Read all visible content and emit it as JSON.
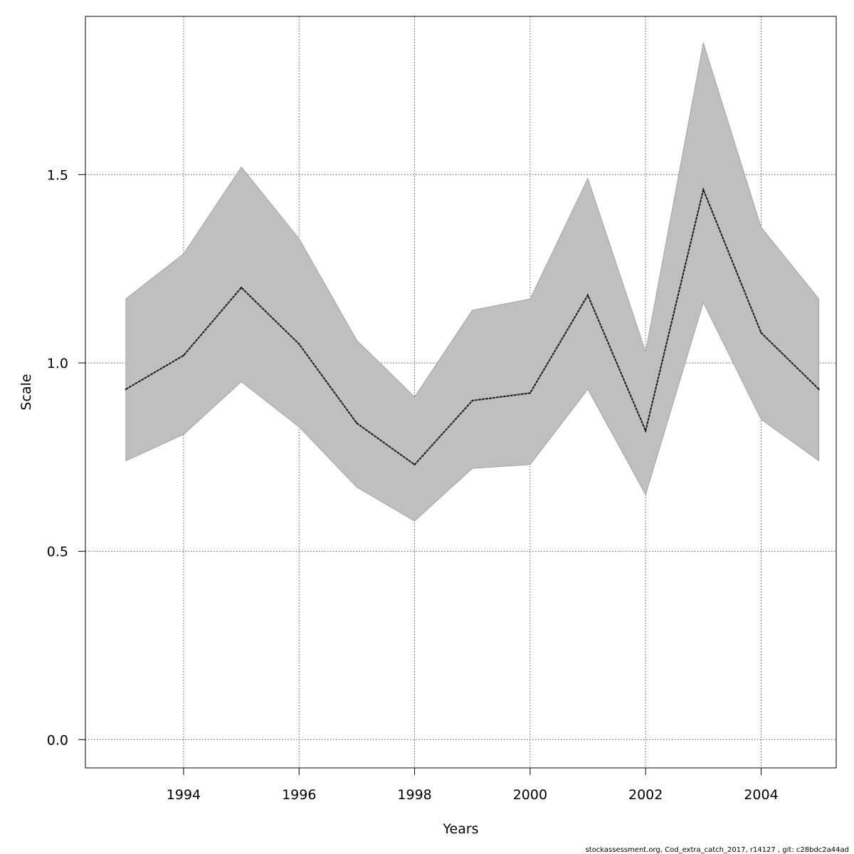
{
  "chart_data": {
    "type": "line",
    "title": "",
    "xlabel": "Years",
    "ylabel": "Scale",
    "xlim": [
      1992.3,
      2005.3
    ],
    "ylim": [
      -0.075,
      1.92
    ],
    "x_ticks": [
      1994,
      1996,
      1998,
      2000,
      2002,
      2004
    ],
    "y_ticks": [
      0.0,
      0.5,
      1.0,
      1.5
    ],
    "x_tick_labels": [
      "1994",
      "1996",
      "1998",
      "2000",
      "2002",
      "2004"
    ],
    "y_tick_labels": [
      "0.0",
      "0.5",
      "1.0",
      "1.5"
    ],
    "grid": true,
    "legend": "none",
    "x": [
      1993,
      1994,
      1995,
      1996,
      1997,
      1998,
      1999,
      2000,
      2001,
      2002,
      2003,
      2004,
      2005
    ],
    "series": [
      {
        "values": [
          0.93,
          1.02,
          1.2,
          1.05,
          0.84,
          0.73,
          0.9,
          0.92,
          1.18,
          0.82,
          1.46,
          1.08,
          0.93
        ],
        "lower": [
          0.74,
          0.81,
          0.95,
          0.83,
          0.67,
          0.58,
          0.72,
          0.73,
          0.93,
          0.65,
          1.16,
          0.85,
          0.74
        ],
        "upper": [
          1.17,
          1.29,
          1.52,
          1.33,
          1.06,
          0.91,
          1.14,
          1.17,
          1.49,
          1.03,
          1.85,
          1.36,
          1.17
        ]
      }
    ],
    "colors": {
      "band": "#bfbfbf",
      "line": "#1a1a1a",
      "grid": "#555555",
      "axis": "#000000"
    }
  },
  "footer": {
    "text": "stockassessment.org, Cod_extra_catch_2017, r14127 , git: c28bdc2a44ad"
  }
}
